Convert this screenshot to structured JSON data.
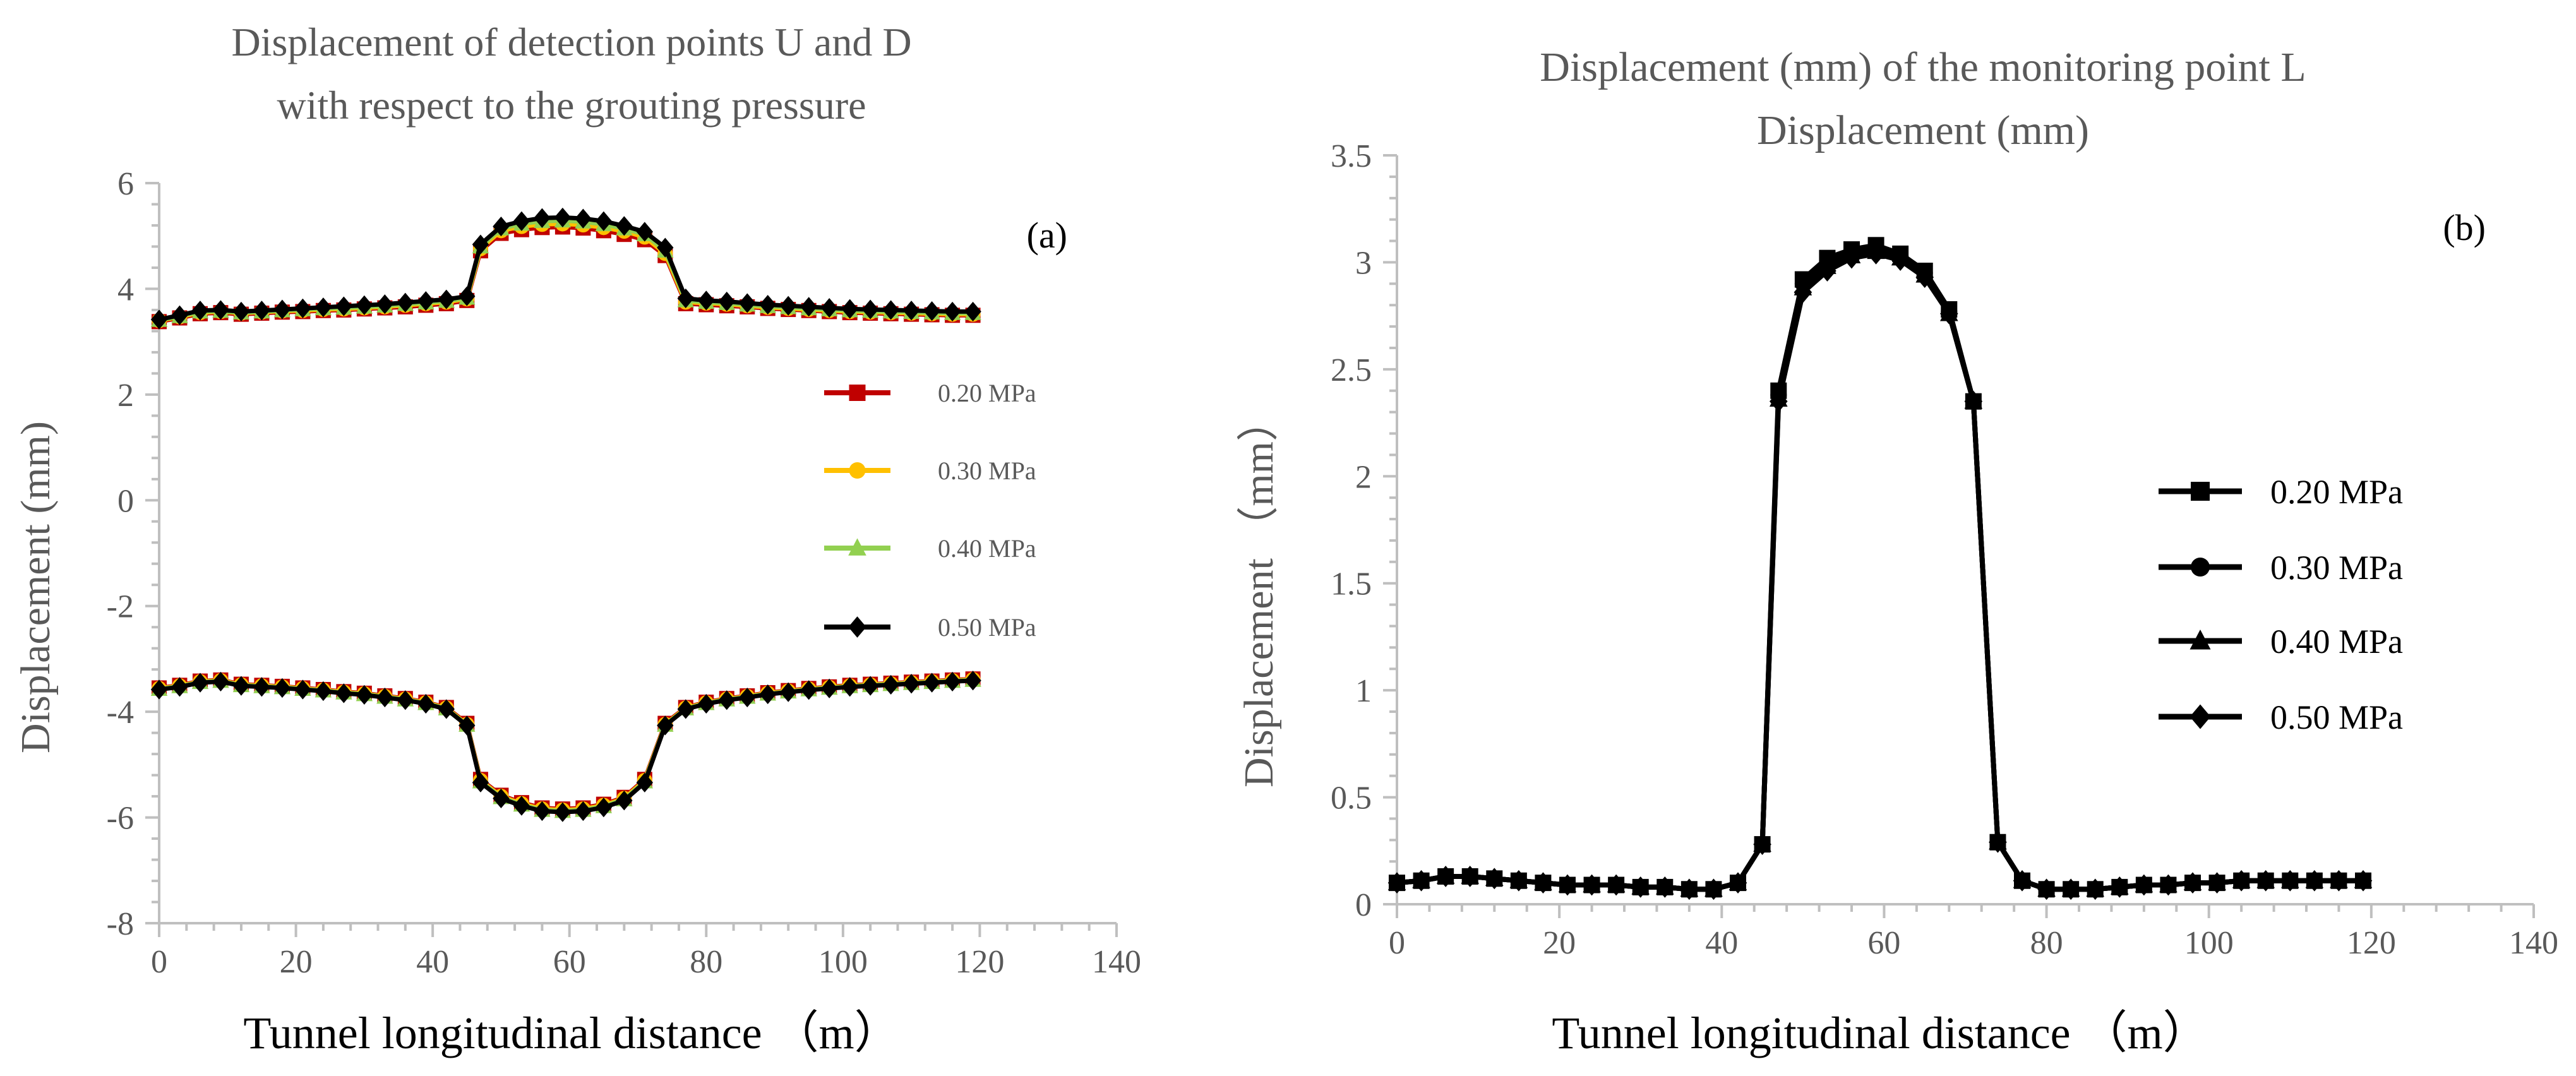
{
  "chart_data": [
    {
      "type": "line",
      "panel_label": "(a)",
      "title": "Displacement of detection points U and D with respect to the grouting pressure",
      "title_lines": [
        "Displacement of detection points U and D",
        "with respect to the grouting pressure"
      ],
      "xlabel": "Tunnel longitudinal distance （m）",
      "ylabel": "Displacement (mm)",
      "xlim": [
        0,
        140
      ],
      "ylim": [
        -8,
        6
      ],
      "xticks": [
        0,
        20,
        40,
        60,
        80,
        100,
        120,
        140
      ],
      "yticks": [
        -8,
        -6,
        -4,
        -2,
        0,
        2,
        4,
        6
      ],
      "ytick_labels": [
        "-8",
        "-6",
        "-4",
        "-2",
        "0",
        "2",
        "4",
        "6"
      ],
      "grid": false,
      "legend_position": "right",
      "x": [
        0,
        3,
        6,
        9,
        12,
        15,
        18,
        21,
        24,
        27,
        30,
        33,
        36,
        39,
        42,
        45,
        47,
        50,
        53,
        56,
        59,
        62,
        65,
        68,
        71,
        74,
        77,
        80,
        83,
        86,
        89,
        92,
        95,
        98,
        101,
        104,
        107,
        110,
        113,
        116,
        119
      ],
      "series": [
        {
          "name": "0.20 MPa",
          "marker": "square",
          "color": "#c00000",
          "upper": [
            3.38,
            3.45,
            3.53,
            3.55,
            3.52,
            3.54,
            3.56,
            3.57,
            3.59,
            3.6,
            3.62,
            3.64,
            3.66,
            3.69,
            3.72,
            3.78,
            4.72,
            5.05,
            5.12,
            5.16,
            5.17,
            5.15,
            5.1,
            5.03,
            4.93,
            4.63,
            3.72,
            3.7,
            3.68,
            3.66,
            3.63,
            3.61,
            3.59,
            3.57,
            3.55,
            3.54,
            3.53,
            3.52,
            3.51,
            3.5,
            3.5
          ],
          "lower": [
            -3.55,
            -3.5,
            -3.42,
            -3.4,
            -3.48,
            -3.5,
            -3.52,
            -3.55,
            -3.58,
            -3.62,
            -3.65,
            -3.7,
            -3.75,
            -3.82,
            -3.92,
            -4.22,
            -5.28,
            -5.58,
            -5.72,
            -5.82,
            -5.84,
            -5.82,
            -5.75,
            -5.62,
            -5.28,
            -4.22,
            -3.92,
            -3.82,
            -3.75,
            -3.7,
            -3.64,
            -3.6,
            -3.56,
            -3.53,
            -3.5,
            -3.48,
            -3.46,
            -3.44,
            -3.42,
            -3.4,
            -3.38
          ]
        },
        {
          "name": "0.30 MPa",
          "marker": "circle",
          "color": "#ffc000",
          "upper": [
            3.4,
            3.47,
            3.55,
            3.57,
            3.54,
            3.56,
            3.58,
            3.59,
            3.61,
            3.62,
            3.64,
            3.66,
            3.69,
            3.72,
            3.75,
            3.81,
            4.76,
            5.1,
            5.18,
            5.22,
            5.23,
            5.21,
            5.16,
            5.09,
            4.98,
            4.67,
            3.75,
            3.73,
            3.71,
            3.68,
            3.65,
            3.63,
            3.61,
            3.59,
            3.57,
            3.56,
            3.55,
            3.54,
            3.53,
            3.52,
            3.52
          ],
          "lower": [
            -3.56,
            -3.51,
            -3.43,
            -3.41,
            -3.49,
            -3.51,
            -3.53,
            -3.56,
            -3.59,
            -3.63,
            -3.66,
            -3.71,
            -3.76,
            -3.83,
            -3.93,
            -4.24,
            -5.3,
            -5.6,
            -5.74,
            -5.84,
            -5.86,
            -5.84,
            -5.77,
            -5.64,
            -5.3,
            -4.24,
            -3.93,
            -3.83,
            -3.76,
            -3.71,
            -3.65,
            -3.61,
            -3.57,
            -3.54,
            -3.51,
            -3.49,
            -3.47,
            -3.45,
            -3.43,
            -3.41,
            -3.39
          ]
        },
        {
          "name": "0.40 MPa",
          "marker": "triangle",
          "color": "#92d050",
          "upper": [
            3.41,
            3.48,
            3.57,
            3.58,
            3.55,
            3.57,
            3.59,
            3.61,
            3.63,
            3.64,
            3.66,
            3.68,
            3.71,
            3.74,
            3.77,
            3.83,
            4.8,
            5.14,
            5.23,
            5.28,
            5.29,
            5.27,
            5.22,
            5.14,
            5.03,
            4.72,
            3.78,
            3.75,
            3.73,
            3.7,
            3.67,
            3.65,
            3.63,
            3.61,
            3.59,
            3.58,
            3.57,
            3.56,
            3.55,
            3.54,
            3.54
          ],
          "lower": [
            -3.57,
            -3.52,
            -3.44,
            -3.42,
            -3.5,
            -3.52,
            -3.54,
            -3.57,
            -3.6,
            -3.64,
            -3.67,
            -3.72,
            -3.77,
            -3.84,
            -3.94,
            -4.25,
            -5.32,
            -5.62,
            -5.76,
            -5.86,
            -5.88,
            -5.86,
            -5.79,
            -5.66,
            -5.32,
            -4.25,
            -3.94,
            -3.84,
            -3.77,
            -3.72,
            -3.66,
            -3.62,
            -3.58,
            -3.55,
            -3.52,
            -3.5,
            -3.48,
            -3.46,
            -3.44,
            -3.42,
            -3.4
          ]
        },
        {
          "name": "0.50 MPa",
          "marker": "diamond",
          "color": "#000000",
          "upper": [
            3.42,
            3.5,
            3.59,
            3.6,
            3.57,
            3.59,
            3.61,
            3.63,
            3.65,
            3.67,
            3.69,
            3.71,
            3.74,
            3.77,
            3.8,
            3.86,
            4.84,
            5.18,
            5.28,
            5.34,
            5.35,
            5.33,
            5.28,
            5.19,
            5.08,
            4.78,
            3.82,
            3.78,
            3.76,
            3.73,
            3.7,
            3.68,
            3.66,
            3.64,
            3.62,
            3.61,
            3.6,
            3.59,
            3.58,
            3.57,
            3.57
          ],
          "lower": [
            -3.58,
            -3.53,
            -3.45,
            -3.43,
            -3.51,
            -3.53,
            -3.55,
            -3.58,
            -3.61,
            -3.65,
            -3.68,
            -3.73,
            -3.78,
            -3.85,
            -3.95,
            -4.26,
            -5.34,
            -5.64,
            -5.78,
            -5.88,
            -5.9,
            -5.88,
            -5.81,
            -5.68,
            -5.34,
            -4.26,
            -3.95,
            -3.85,
            -3.78,
            -3.73,
            -3.67,
            -3.63,
            -3.59,
            -3.56,
            -3.53,
            -3.51,
            -3.49,
            -3.47,
            -3.45,
            -3.43,
            -3.41
          ]
        }
      ]
    },
    {
      "type": "line",
      "panel_label": "(b)",
      "title": "Displacement (mm) of the monitoring point L Displacement (mm)",
      "title_lines": [
        "Displacement (mm) of the monitoring point L",
        "Displacement (mm)"
      ],
      "xlabel": "Tunnel longitudinal distance （m）",
      "ylabel": "Displacement （mm）",
      "xlim": [
        0,
        140
      ],
      "ylim": [
        0,
        3.5
      ],
      "xticks": [
        0,
        20,
        40,
        60,
        80,
        100,
        120,
        140
      ],
      "yticks": [
        0,
        0.5,
        1,
        1.5,
        2,
        2.5,
        3,
        3.5
      ],
      "ytick_labels": [
        "0",
        "0.5",
        "1",
        "1.5",
        "2",
        "2.5",
        "3",
        "3.5"
      ],
      "grid": false,
      "legend_position": "right",
      "x": [
        0,
        3,
        6,
        9,
        12,
        15,
        18,
        21,
        24,
        27,
        30,
        33,
        36,
        39,
        42,
        45,
        47,
        50,
        53,
        56,
        59,
        62,
        65,
        68,
        71,
        74,
        77,
        80,
        83,
        86,
        89,
        92,
        95,
        98,
        101,
        104,
        107,
        110,
        113,
        116,
        119
      ],
      "series": [
        {
          "name": "0.20 MPa",
          "marker": "square",
          "color": "#000000",
          "values": [
            0.1,
            0.11,
            0.13,
            0.13,
            0.12,
            0.11,
            0.1,
            0.09,
            0.09,
            0.09,
            0.08,
            0.08,
            0.07,
            0.07,
            0.1,
            0.28,
            2.4,
            2.92,
            3.02,
            3.06,
            3.08,
            3.04,
            2.96,
            2.78,
            2.35,
            0.29,
            0.11,
            0.07,
            0.07,
            0.07,
            0.08,
            0.09,
            0.09,
            0.1,
            0.1,
            0.11,
            0.11,
            0.11,
            0.11,
            0.11,
            0.11
          ]
        },
        {
          "name": "0.30 MPa",
          "marker": "circle",
          "color": "#000000",
          "values": [
            0.1,
            0.11,
            0.13,
            0.13,
            0.12,
            0.11,
            0.1,
            0.09,
            0.09,
            0.09,
            0.08,
            0.08,
            0.07,
            0.07,
            0.1,
            0.28,
            2.38,
            2.9,
            3.0,
            3.04,
            3.06,
            3.03,
            2.95,
            2.77,
            2.35,
            0.29,
            0.11,
            0.07,
            0.07,
            0.07,
            0.08,
            0.09,
            0.09,
            0.1,
            0.1,
            0.11,
            0.11,
            0.11,
            0.11,
            0.11,
            0.11
          ]
        },
        {
          "name": "0.40 MPa",
          "marker": "triangle",
          "color": "#000000",
          "values": [
            0.1,
            0.11,
            0.13,
            0.13,
            0.12,
            0.11,
            0.1,
            0.09,
            0.09,
            0.09,
            0.08,
            0.08,
            0.07,
            0.07,
            0.1,
            0.28,
            2.36,
            2.88,
            2.98,
            3.03,
            3.05,
            3.02,
            2.94,
            2.76,
            2.35,
            0.29,
            0.11,
            0.07,
            0.07,
            0.07,
            0.08,
            0.09,
            0.09,
            0.1,
            0.1,
            0.11,
            0.11,
            0.11,
            0.11,
            0.11,
            0.11
          ]
        },
        {
          "name": "0.50 MPa",
          "marker": "diamond",
          "color": "#000000",
          "values": [
            0.1,
            0.11,
            0.13,
            0.13,
            0.12,
            0.11,
            0.1,
            0.09,
            0.09,
            0.09,
            0.08,
            0.08,
            0.07,
            0.07,
            0.1,
            0.28,
            2.35,
            2.86,
            2.96,
            3.02,
            3.04,
            3.01,
            2.93,
            2.76,
            2.35,
            0.29,
            0.11,
            0.07,
            0.07,
            0.07,
            0.08,
            0.09,
            0.09,
            0.1,
            0.1,
            0.11,
            0.11,
            0.11,
            0.11,
            0.11,
            0.11
          ]
        }
      ]
    }
  ]
}
